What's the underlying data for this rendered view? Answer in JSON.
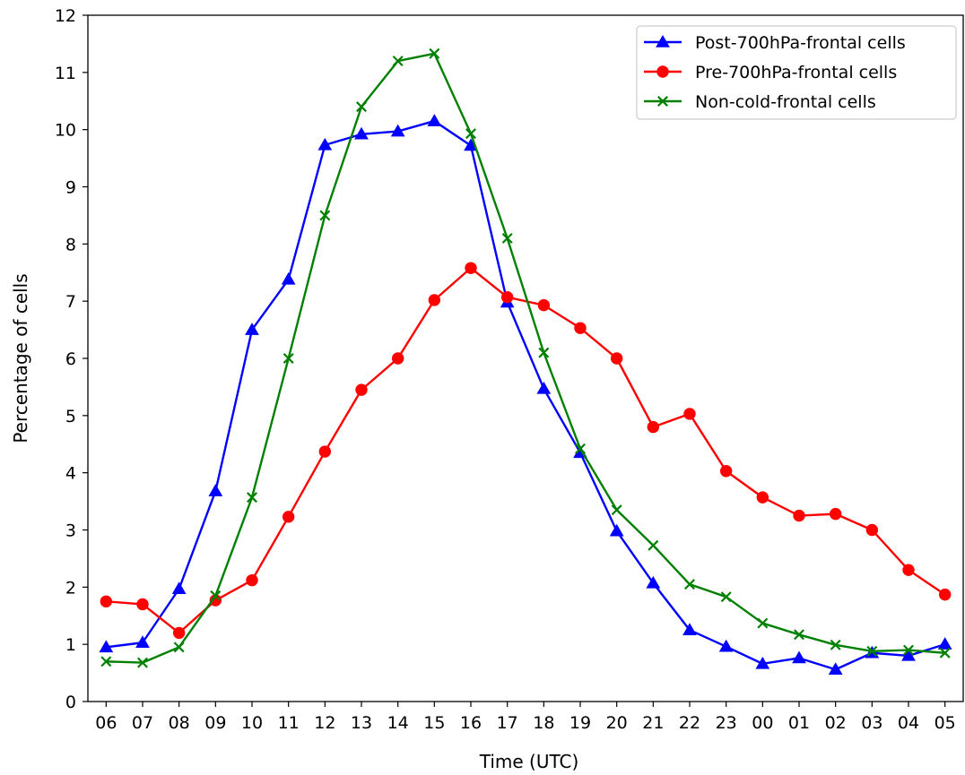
{
  "chart_data": {
    "type": "line",
    "xlabel": "Time (UTC)",
    "ylabel": "Percentage of cells",
    "xlim": [
      0,
      24
    ],
    "ylim": [
      0,
      12
    ],
    "x_tick_labels": [
      "06",
      "07",
      "08",
      "09",
      "10",
      "11",
      "12",
      "13",
      "14",
      "15",
      "16",
      "17",
      "18",
      "19",
      "20",
      "21",
      "22",
      "23",
      "00",
      "01",
      "02",
      "03",
      "04",
      "05",
      "06"
    ],
    "y_tick_labels": [
      "0",
      "1",
      "2",
      "3",
      "4",
      "5",
      "6",
      "7",
      "8",
      "9",
      "10",
      "11",
      "12"
    ],
    "x": [
      0.5,
      1.5,
      2.5,
      3.5,
      4.5,
      5.5,
      6.5,
      7.5,
      8.5,
      9.5,
      10.5,
      11.5,
      12.5,
      13.5,
      14.5,
      15.5,
      16.5,
      17.5,
      18.5,
      19.5,
      20.5,
      21.5,
      22.5,
      23.5
    ],
    "legend_position": "upper right",
    "grid": false,
    "series": [
      {
        "name": "Post-700hPa-frontal cells",
        "color": "#0000ff",
        "marker": "triangle",
        "values": [
          0.95,
          1.03,
          1.97,
          3.68,
          6.5,
          7.38,
          9.73,
          9.92,
          9.97,
          10.15,
          9.72,
          6.98,
          5.47,
          4.35,
          2.98,
          2.07,
          1.25,
          0.96,
          0.66,
          0.76,
          0.56,
          0.85,
          0.8,
          1.0
        ]
      },
      {
        "name": "Pre-700hPa-frontal cells",
        "color": "#ff0000",
        "marker": "circle",
        "values": [
          1.75,
          1.7,
          1.2,
          1.77,
          2.12,
          3.23,
          4.37,
          5.45,
          6.0,
          7.02,
          7.58,
          7.07,
          6.93,
          6.53,
          6.0,
          4.8,
          5.03,
          4.03,
          3.57,
          3.25,
          3.28,
          3.0,
          2.3,
          1.87
        ]
      },
      {
        "name": "Non-cold-frontal cells",
        "color": "#008000",
        "marker": "x",
        "values": [
          0.7,
          0.68,
          0.95,
          1.85,
          3.57,
          6.0,
          8.5,
          10.4,
          11.2,
          11.33,
          9.93,
          8.1,
          6.1,
          4.42,
          3.35,
          2.73,
          2.05,
          1.83,
          1.37,
          1.17,
          0.99,
          0.88,
          0.9,
          0.85
        ]
      }
    ]
  }
}
